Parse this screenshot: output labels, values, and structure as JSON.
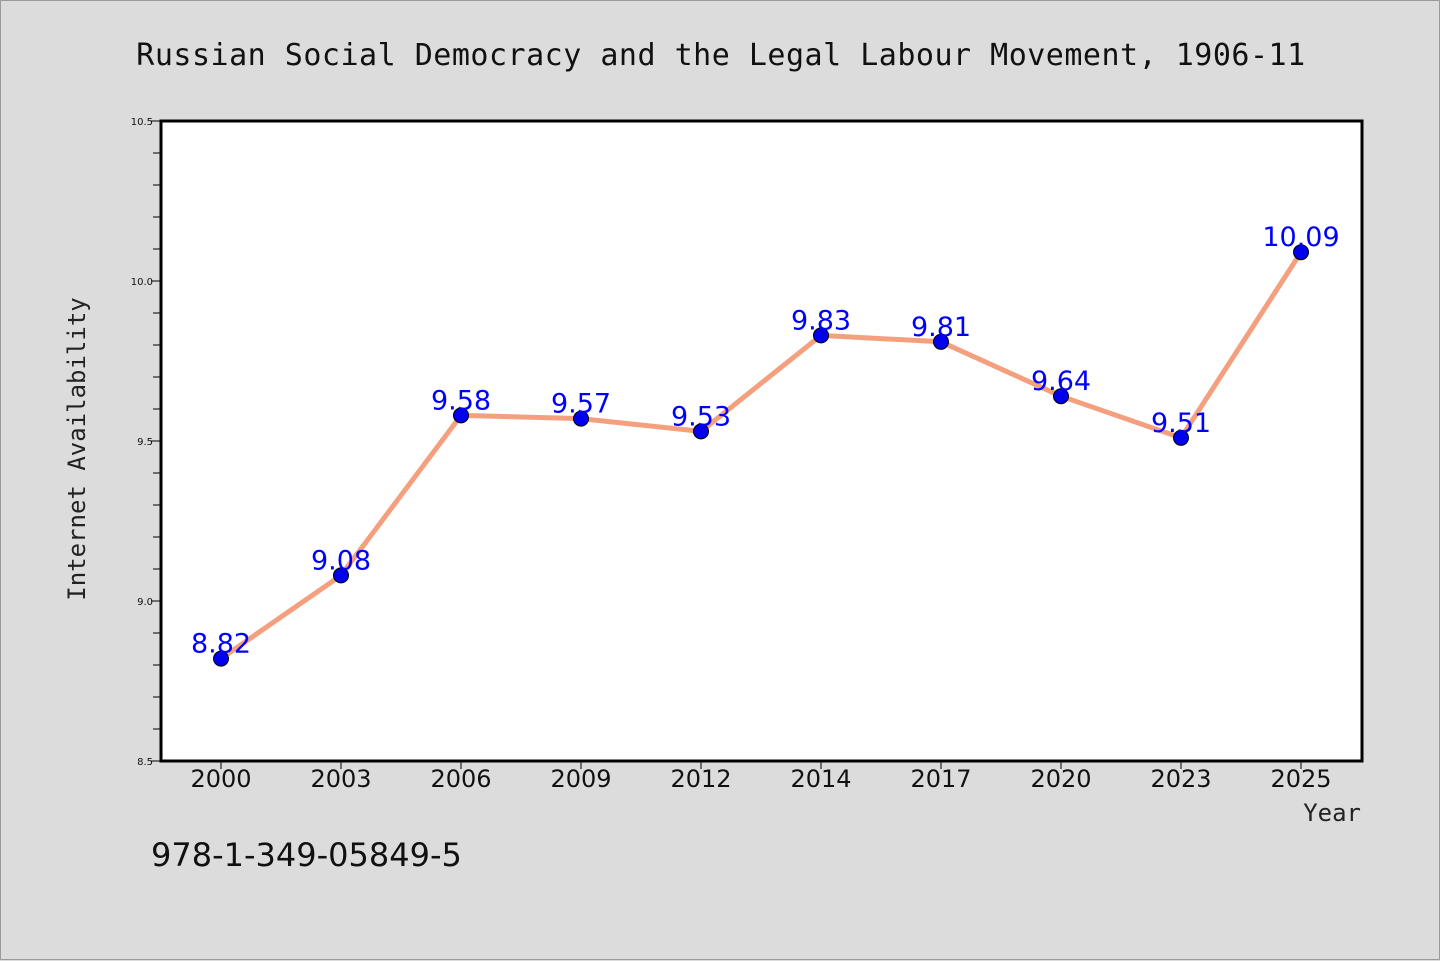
{
  "chart_data": {
    "type": "line",
    "title": "Russian Social Democracy and the Legal Labour Movement, 1906-11",
    "xlabel": "Year",
    "ylabel": "Internet Availability",
    "categories": [
      "2000",
      "2003",
      "2006",
      "2009",
      "2012",
      "2014",
      "2017",
      "2020",
      "2023",
      "2025"
    ],
    "series": [
      {
        "values": [
          8.82,
          9.08,
          9.58,
          9.57,
          9.53,
          9.83,
          9.81,
          9.64,
          9.51,
          10.09
        ]
      }
    ],
    "data_labels": [
      "8.82",
      "9.08",
      "9.58",
      "9.57",
      "9.53",
      "9.83",
      "9.81",
      "9.64",
      "9.51",
      "10.09"
    ],
    "ylim": [
      8.5,
      10.5
    ],
    "yticks": [
      "8.5",
      "9.0",
      "9.5",
      "10.0",
      "10.5"
    ],
    "grid": false,
    "legend": "none",
    "colors": {
      "line": "#f4a07e",
      "marker": "#0000ee",
      "data_label": "#0000ff",
      "background": "#dcdcdc",
      "plot_background": "#ffffff"
    }
  },
  "footer": {
    "isbn": "978-1-349-05849-5"
  }
}
